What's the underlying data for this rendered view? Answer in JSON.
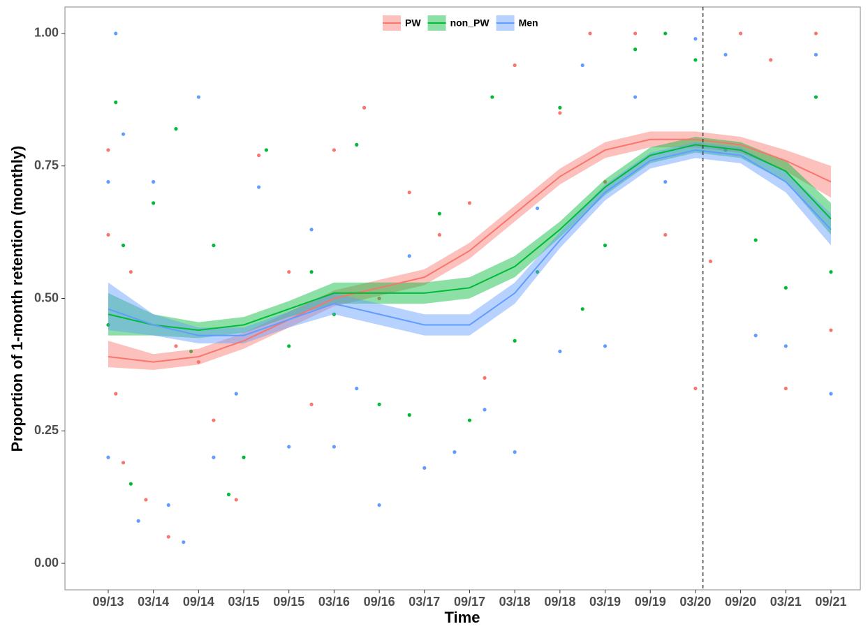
{
  "chart_data": {
    "type": "line",
    "x_label": "Time",
    "y_label": "Proportion of 1-month retention (monthly)",
    "xlim": [
      -5.75,
      99.9
    ],
    "ylim": [
      -0.05,
      1.05
    ],
    "xticks": [
      {
        "value": 0,
        "label": "09/13"
      },
      {
        "value": 6,
        "label": "03/14"
      },
      {
        "value": 12,
        "label": "09/14"
      },
      {
        "value": 18,
        "label": "03/15"
      },
      {
        "value": 24,
        "label": "09/15"
      },
      {
        "value": 30,
        "label": "03/16"
      },
      {
        "value": 36,
        "label": "09/16"
      },
      {
        "value": 42,
        "label": "03/17"
      },
      {
        "value": 48,
        "label": "09/17"
      },
      {
        "value": 54,
        "label": "03/18"
      },
      {
        "value": 60,
        "label": "09/18"
      },
      {
        "value": 66,
        "label": "03/19"
      },
      {
        "value": 72,
        "label": "09/19"
      },
      {
        "value": 78,
        "label": "03/20"
      },
      {
        "value": 84,
        "label": "09/20"
      },
      {
        "value": 90,
        "label": "03/21"
      },
      {
        "value": 96,
        "label": "09/21"
      }
    ],
    "yticks": [
      {
        "value": 0,
        "label": "0.00"
      },
      {
        "value": 0.25,
        "label": "0.25"
      },
      {
        "value": 0.5,
        "label": "0.50"
      },
      {
        "value": 0.75,
        "label": "0.75"
      },
      {
        "value": 1,
        "label": "1.00"
      }
    ],
    "vline": 79,
    "x": [
      0,
      6,
      12,
      18,
      24,
      30,
      36,
      42,
      48,
      54,
      60,
      66,
      72,
      78,
      84,
      90,
      96
    ],
    "series": [
      {
        "name": "PW",
        "color": "#F8766D",
        "values": [
          0.39,
          0.38,
          0.39,
          0.42,
          0.46,
          0.5,
          0.52,
          0.54,
          0.59,
          0.66,
          0.73,
          0.78,
          0.8,
          0.8,
          0.79,
          0.76,
          0.72
        ],
        "lower": [
          0.37,
          0.365,
          0.375,
          0.405,
          0.445,
          0.485,
          0.505,
          0.525,
          0.575,
          0.645,
          0.715,
          0.765,
          0.785,
          0.785,
          0.775,
          0.74,
          0.69
        ],
        "upper": [
          0.42,
          0.395,
          0.405,
          0.435,
          0.475,
          0.515,
          0.535,
          0.555,
          0.605,
          0.675,
          0.745,
          0.795,
          0.815,
          0.815,
          0.805,
          0.78,
          0.75
        ],
        "points_x": [
          0,
          0,
          1,
          2,
          3,
          5,
          8,
          9,
          12,
          14,
          17,
          20,
          24,
          27,
          30,
          34,
          36,
          40,
          44,
          48,
          50,
          54,
          57,
          60,
          64,
          66,
          70,
          74,
          78,
          80,
          84,
          88,
          90,
          94,
          96
        ],
        "points_y": [
          0.62,
          0.78,
          0.32,
          0.19,
          0.55,
          0.12,
          0.05,
          0.41,
          0.38,
          0.27,
          0.12,
          0.77,
          0.55,
          0.3,
          0.78,
          0.86,
          0.5,
          0.7,
          0.62,
          0.68,
          0.35,
          0.94,
          0.55,
          0.85,
          1.0,
          0.72,
          1.0,
          0.62,
          0.33,
          0.57,
          1.0,
          0.95,
          0.33,
          1.0,
          0.44
        ]
      },
      {
        "name": "non_PW",
        "color": "#00BA38",
        "values": [
          0.47,
          0.45,
          0.44,
          0.45,
          0.48,
          0.51,
          0.51,
          0.51,
          0.52,
          0.56,
          0.63,
          0.71,
          0.77,
          0.79,
          0.78,
          0.74,
          0.65
        ],
        "lower": [
          0.43,
          0.43,
          0.425,
          0.435,
          0.465,
          0.49,
          0.49,
          0.49,
          0.5,
          0.54,
          0.615,
          0.695,
          0.755,
          0.775,
          0.765,
          0.72,
          0.62
        ],
        "upper": [
          0.51,
          0.47,
          0.455,
          0.465,
          0.495,
          0.53,
          0.53,
          0.53,
          0.54,
          0.58,
          0.645,
          0.725,
          0.785,
          0.805,
          0.795,
          0.76,
          0.68
        ],
        "points_x": [
          0,
          1,
          2,
          3,
          6,
          9,
          11,
          14,
          16,
          18,
          21,
          24,
          27,
          30,
          33,
          36,
          40,
          44,
          48,
          51,
          54,
          57,
          60,
          63,
          66,
          70,
          74,
          78,
          82,
          86,
          90,
          94,
          96
        ],
        "points_y": [
          0.45,
          0.87,
          0.6,
          0.15,
          0.68,
          0.82,
          0.4,
          0.6,
          0.13,
          0.2,
          0.78,
          0.41,
          0.55,
          0.47,
          0.79,
          0.3,
          0.28,
          0.66,
          0.27,
          0.88,
          0.42,
          0.55,
          0.86,
          0.48,
          0.6,
          0.97,
          1.0,
          0.95,
          0.78,
          0.61,
          0.52,
          0.88,
          0.55
        ]
      },
      {
        "name": "Men",
        "color": "#619CFF",
        "values": [
          0.48,
          0.45,
          0.43,
          0.43,
          0.46,
          0.49,
          0.47,
          0.45,
          0.45,
          0.51,
          0.61,
          0.7,
          0.76,
          0.78,
          0.77,
          0.72,
          0.63
        ],
        "lower": [
          0.44,
          0.43,
          0.415,
          0.415,
          0.445,
          0.47,
          0.45,
          0.43,
          0.43,
          0.49,
          0.595,
          0.685,
          0.745,
          0.765,
          0.755,
          0.7,
          0.6
        ],
        "upper": [
          0.53,
          0.47,
          0.445,
          0.445,
          0.475,
          0.51,
          0.49,
          0.47,
          0.47,
          0.53,
          0.625,
          0.715,
          0.775,
          0.795,
          0.785,
          0.74,
          0.66
        ],
        "points_x": [
          0,
          0,
          1,
          2,
          4,
          6,
          8,
          10,
          12,
          14,
          17,
          20,
          24,
          27,
          30,
          33,
          36,
          40,
          42,
          46,
          50,
          54,
          57,
          60,
          63,
          66,
          70,
          74,
          78,
          82,
          86,
          90,
          94,
          96
        ],
        "points_y": [
          0.2,
          0.72,
          1.0,
          0.81,
          0.08,
          0.72,
          0.11,
          0.04,
          0.88,
          0.2,
          0.32,
          0.71,
          0.22,
          0.63,
          0.22,
          0.33,
          0.11,
          0.58,
          0.18,
          0.21,
          0.29,
          0.21,
          0.67,
          0.4,
          0.94,
          0.41,
          0.88,
          0.72,
          0.99,
          0.96,
          0.43,
          0.41,
          0.96,
          0.32
        ]
      }
    ]
  }
}
